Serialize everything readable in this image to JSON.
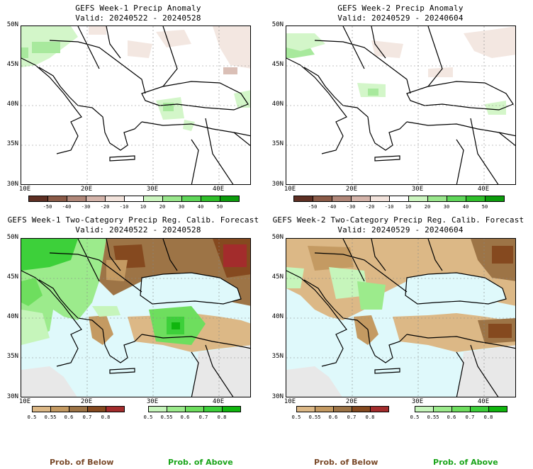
{
  "panels": [
    {
      "title": "GEFS Week-1 Precip Anomaly",
      "valid": "Valid: 20240522 - 20240528"
    },
    {
      "title": "GEFS Week-2 Precip Anomaly",
      "valid": "Valid: 20240529 - 20240604"
    },
    {
      "title": "GEFS Week-1 Two-Category Precip Reg. Calib. Forecast",
      "valid": "Valid: 20240522 - 20240528"
    },
    {
      "title": "GEFS Week-2 Two-Category Precip Reg. Calib. Forecast",
      "valid": "Valid: 20240529 - 20240604"
    }
  ],
  "lat_labels": [
    "50N",
    "45N",
    "40N",
    "35N",
    "30N"
  ],
  "lon_labels": [
    "10E",
    "20E",
    "30E",
    "40E"
  ],
  "anomaly_colorbar": {
    "ticks": [
      "-50",
      "-40",
      "-30",
      "-20",
      "-10",
      "10",
      "20",
      "30",
      "40",
      "50"
    ],
    "colors": [
      "#5e2f23",
      "#8a5a47",
      "#b08779",
      "#d4b4aa",
      "#f2e3dc",
      "#ffffff",
      "#ccf5c0",
      "#99e68c",
      "#5fd659",
      "#2fbf2a",
      "#0c9c0c"
    ]
  },
  "prob_below_colorbar": {
    "ticks": [
      "0.5",
      "0.55",
      "0.6",
      "0.7",
      "0.8"
    ],
    "colors": [
      "#dcb886",
      "#c49a62",
      "#9d7446",
      "#85491f",
      "#a32c2c"
    ]
  },
  "prob_above_colorbar": {
    "ticks": [
      "0.5",
      "0.55",
      "0.6",
      "0.7",
      "0.8"
    ],
    "colors": [
      "#c6f5bb",
      "#9ceb8c",
      "#6ede5e",
      "#3dd03a",
      "#10b60e"
    ]
  },
  "legend_labels": {
    "below": "Prob. of Below",
    "above": "Prob. of Above"
  },
  "colors": {
    "below_label": "#7a4a2a",
    "above_label": "#1aa51a",
    "ocean": "#dff9fb",
    "land_gray": "#e8e8e8"
  }
}
